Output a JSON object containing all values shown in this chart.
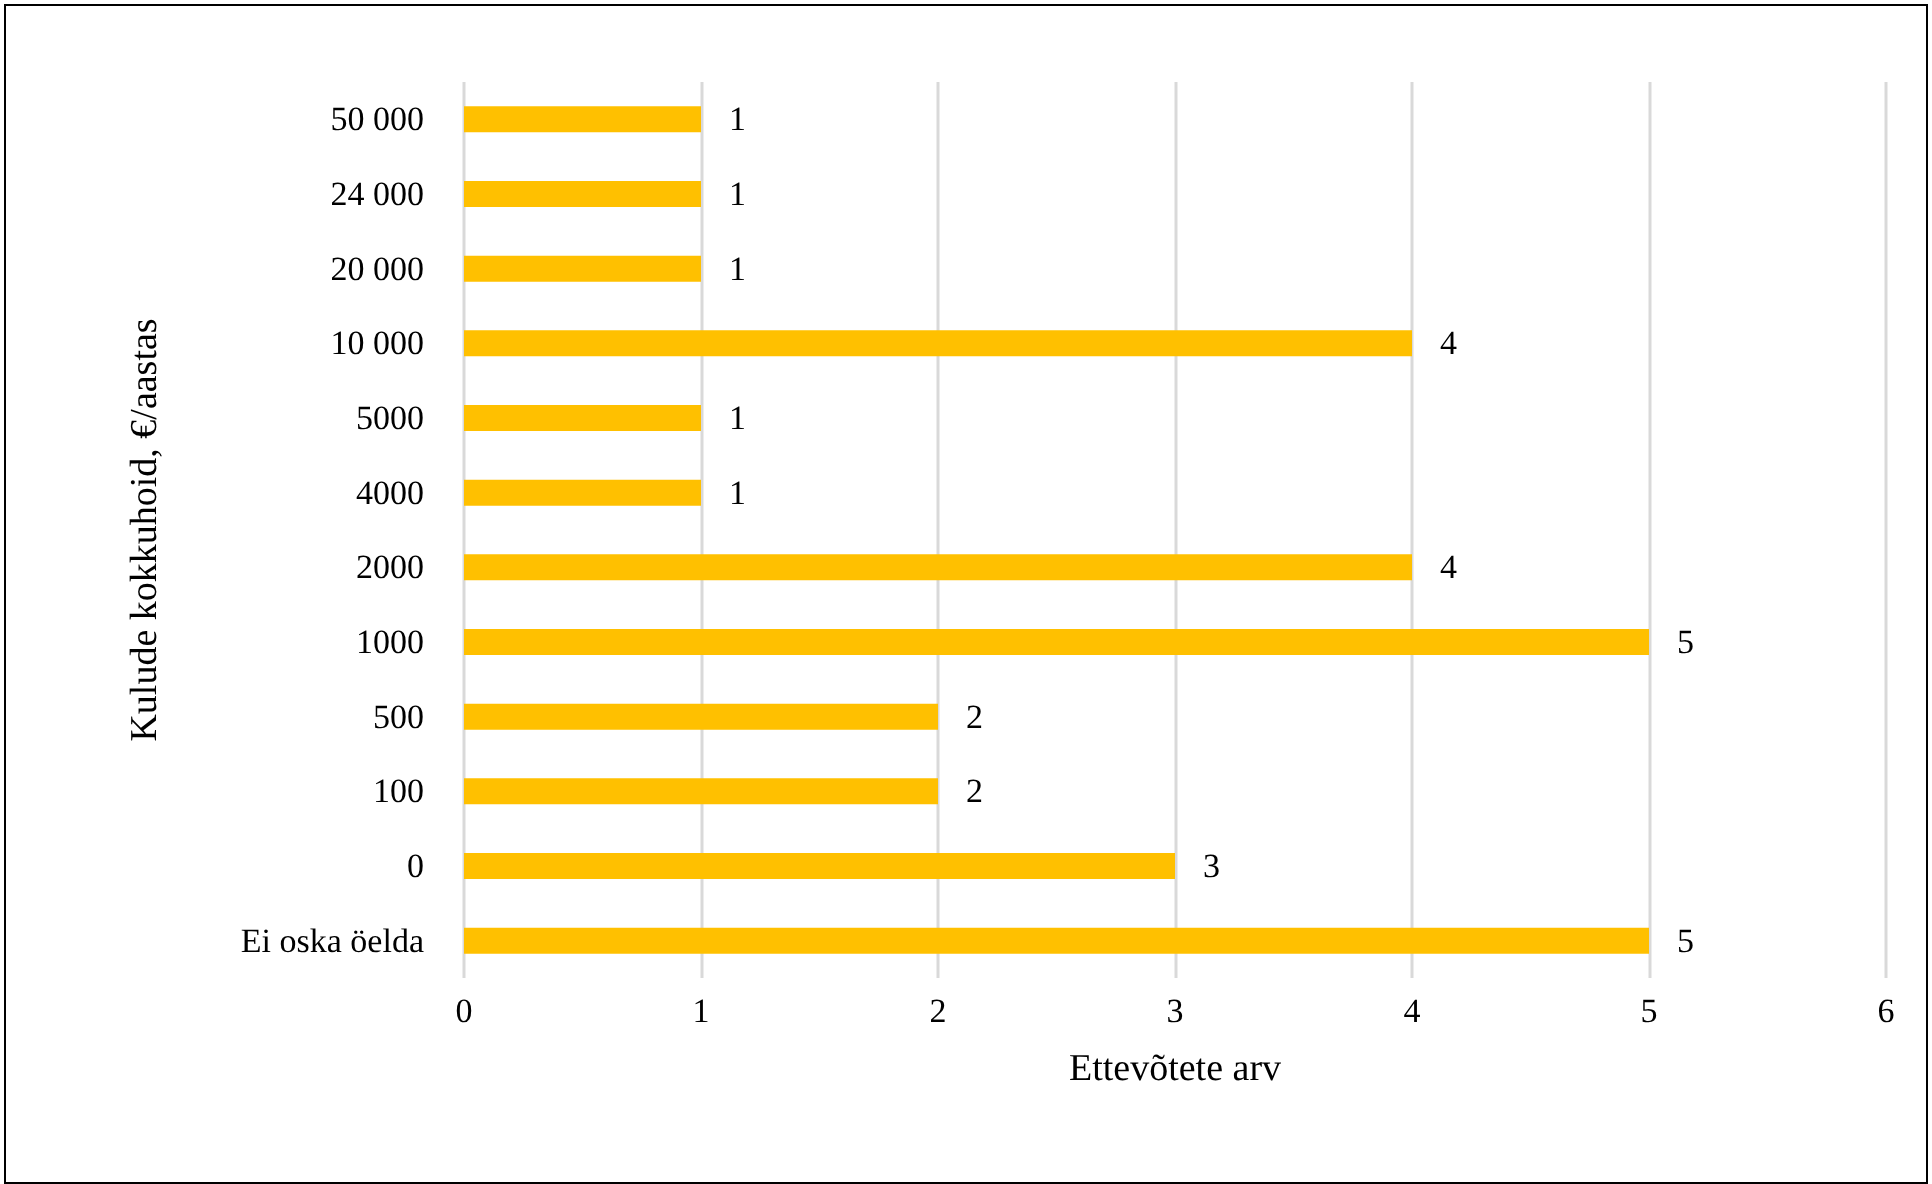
{
  "chart_data": {
    "type": "bar",
    "orientation": "horizontal",
    "categories": [
      "50 000",
      "24 000",
      "20 000",
      "10 000",
      "5000",
      "4000",
      "2000",
      "1000",
      "500",
      "100",
      "0",
      "Ei oska öelda"
    ],
    "values": [
      1,
      1,
      1,
      4,
      1,
      1,
      4,
      5,
      2,
      2,
      3,
      5
    ],
    "color": "#ffc000",
    "xlim": [
      0,
      6
    ],
    "xticks": [
      0,
      1,
      2,
      3,
      4,
      5,
      6
    ],
    "xlabel": "Ettevõtete arv",
    "ylabel": "Kulude kokkuhoid, €/aastas",
    "grid": "x",
    "data_labels": true
  }
}
